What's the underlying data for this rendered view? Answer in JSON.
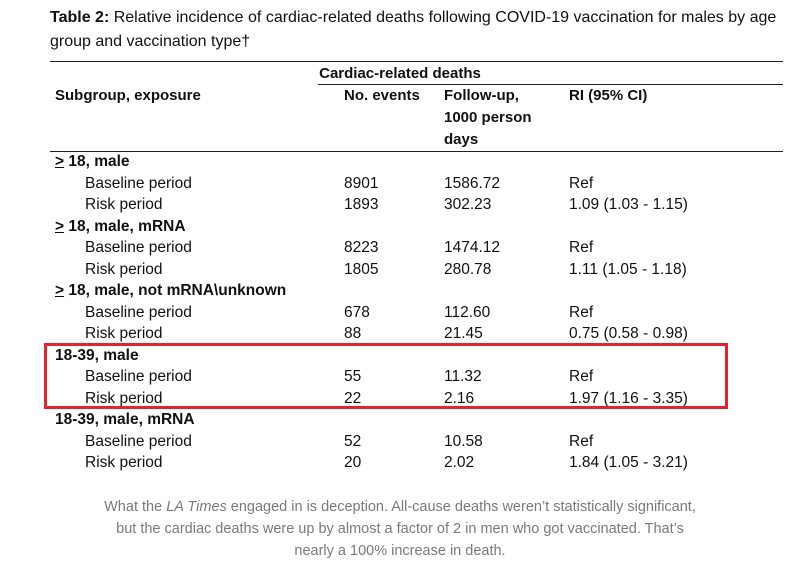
{
  "table": {
    "title_label": "Table 2:",
    "title_text": " Relative incidence of cardiac-related deaths following COVID-19 vaccination for males by age group and vaccination type†",
    "spanner": "Cardiac-related deaths",
    "headers": {
      "subgroup": "Subgroup, exposure",
      "events": "No. events",
      "followup": "Follow-up,\n1000 person\ndays",
      "ri": "RI (95% CI)"
    },
    "groups": [
      {
        "label_prefix": ">",
        "label_rest": " 18, male",
        "rows": [
          {
            "exposure": "Baseline period",
            "events": "8901",
            "followup": "1586.72",
            "ri": "Ref"
          },
          {
            "exposure": "Risk period",
            "events": "1893",
            "followup": "302.23",
            "ri": "1.09 (1.03 - 1.15)"
          }
        ]
      },
      {
        "label_prefix": ">",
        "label_rest": " 18, male, mRNA",
        "rows": [
          {
            "exposure": "Baseline period",
            "events": "8223",
            "followup": "1474.12",
            "ri": "Ref"
          },
          {
            "exposure": "Risk period",
            "events": "1805",
            "followup": "280.78",
            "ri": "1.11 (1.05 - 1.18)"
          }
        ]
      },
      {
        "label_prefix": ">",
        "label_rest": " 18, male, not mRNA\\unknown",
        "rows": [
          {
            "exposure": "Baseline period",
            "events": "678",
            "followup": "112.60",
            "ri": "Ref"
          },
          {
            "exposure": "Risk period",
            "events": "88",
            "followup": "21.45",
            "ri": "0.75 (0.58 - 0.98)"
          }
        ]
      },
      {
        "label_prefix": "",
        "label_rest": "18-39, male",
        "rows": [
          {
            "exposure": "Baseline period",
            "events": "55",
            "followup": "11.32",
            "ri": "Ref"
          },
          {
            "exposure": "Risk period",
            "events": "22",
            "followup": "2.16",
            "ri": "1.97 (1.16 - 3.35)"
          }
        ]
      },
      {
        "label_prefix": "",
        "label_rest": "18-39, male, mRNA",
        "rows": [
          {
            "exposure": "Baseline period",
            "events": "52",
            "followup": "10.58",
            "ri": "Ref"
          },
          {
            "exposure": "Risk period",
            "events": "20",
            "followup": "2.02",
            "ri": "1.84 (1.05 - 3.21)"
          }
        ]
      }
    ]
  },
  "caption": {
    "part1": "What the ",
    "italic": "LA Times",
    "part2": " engaged in is deception. All-cause deaths weren’t statistically significant, but the cardiac deaths were up by almost a factor of 2 in men who got vaccinated. That’s nearly a 100% increase in death."
  },
  "highlight_color": "#e0252f"
}
